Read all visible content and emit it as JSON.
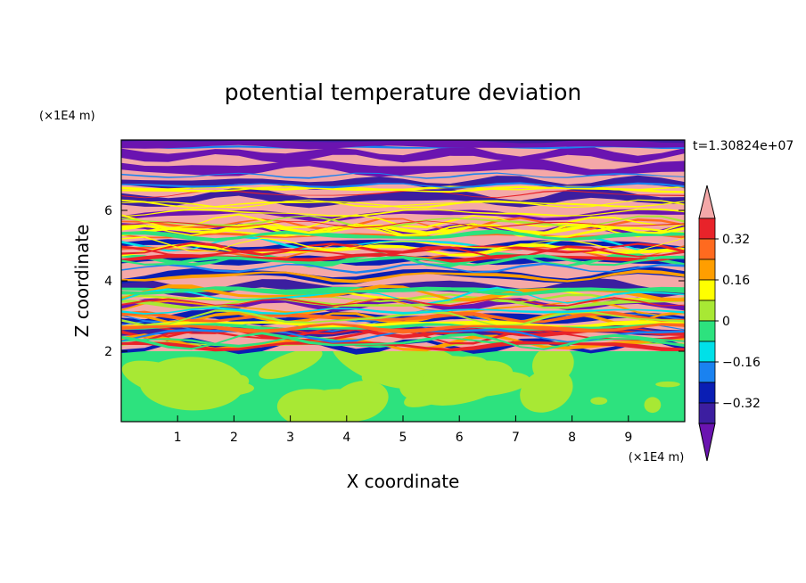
{
  "chart_data": {
    "type": "heatmap",
    "title": "potential temperature deviation",
    "xlabel": "X coordinate",
    "ylabel": "Z coordinate",
    "x_unit": "(×1E4 m)",
    "y_unit": "(×1E4 m)",
    "time_label": "t=1.30824e+07",
    "xlim": [
      0,
      10
    ],
    "ylim": [
      0,
      8
    ],
    "x_ticks": [
      "1",
      "2",
      "3",
      "4",
      "5",
      "6",
      "7",
      "8",
      "9"
    ],
    "y_ticks": [
      "2",
      "4",
      "6"
    ],
    "colorbar": {
      "levels": [
        {
          "color": "#f4a8a8"
        },
        {
          "color": "#e8232a"
        },
        {
          "color": "#ff6a1f"
        },
        {
          "color": "#ff9e00"
        },
        {
          "color": "#ffff00"
        },
        {
          "color": "#a8e834"
        },
        {
          "color": "#2de27e"
        },
        {
          "color": "#00e0e8"
        },
        {
          "color": "#1a82f0"
        },
        {
          "color": "#0a1eb4"
        },
        {
          "color": "#3c1ea0"
        },
        {
          "color": "#6a14b0"
        }
      ],
      "labels": [
        {
          "text": "0.32",
          "value": 0.32
        },
        {
          "text": "0.16",
          "value": 0.16
        },
        {
          "text": "0",
          "value": 0
        },
        {
          "text": "−0.16",
          "value": -0.16
        },
        {
          "text": "−0.32",
          "value": -0.32
        }
      ]
    }
  }
}
